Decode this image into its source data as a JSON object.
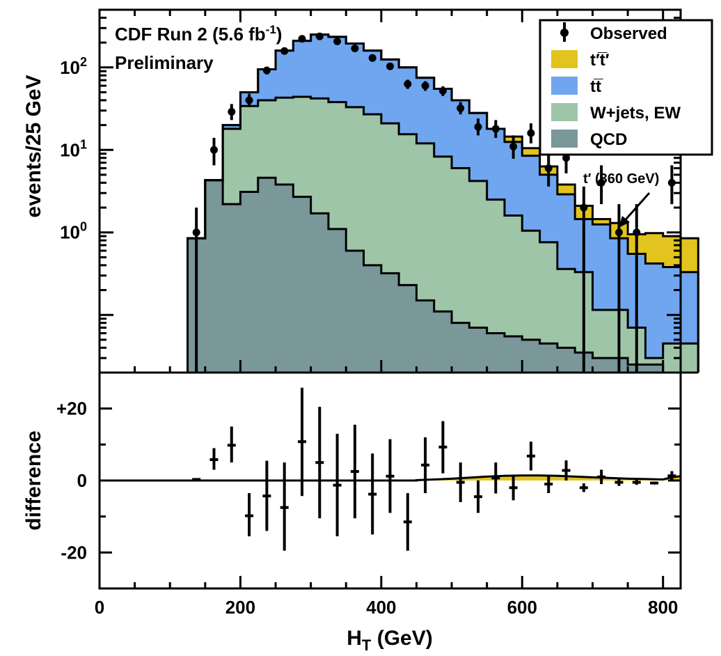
{
  "header": {
    "experiment": "CDF Run 2 (5.6 fb",
    "lumi_sup": "-1",
    "lumi_close": ")",
    "status": "Preliminary"
  },
  "annotation": {
    "label": "t′  (360 GeV)"
  },
  "colors": {
    "tprime": "#e3c31d",
    "ttbar": "#6fa6ef",
    "wjets": "#9ec5a7",
    "qcd": "#7a979a",
    "outline": "#000000"
  },
  "chart_data": [
    {
      "type": "histogram",
      "xlabel": "H",
      "xlabel_sub": "T",
      "xlabel_unit": "  (GeV)",
      "ylabel": "events/25 GeV",
      "yscale": "log",
      "xlim": [
        0,
        825
      ],
      "ylim": [
        0.02,
        500
      ],
      "x_ticks": [
        "0",
        "200",
        "400",
        "600",
        "800"
      ],
      "y_ticks": [
        {
          "value": 1,
          "base": "10",
          "exp": "0"
        },
        {
          "value": 10,
          "base": "10",
          "exp": "1"
        },
        {
          "value": 100,
          "base": "10",
          "exp": "2"
        }
      ],
      "legend_position": "top-right",
      "legend": [
        {
          "key": "observed",
          "label": "Observed"
        },
        {
          "key": "tprime",
          "label": "t′t̅′"
        },
        {
          "key": "ttbar",
          "label": "tt̅"
        },
        {
          "key": "wjets",
          "label": "W+jets, EW"
        },
        {
          "key": "qcd",
          "label": "QCD"
        }
      ],
      "bin_width": 25,
      "bin_edges_start": 125,
      "bin_edges_end": 825,
      "stack_total_with_tprime": [
        0.85,
        4.3,
        20,
        50,
        95,
        160,
        210,
        250,
        235,
        195,
        160,
        125,
        100,
        75,
        55,
        40,
        28,
        18,
        14.5,
        10.5,
        6.3,
        3.8,
        2.1,
        1.45,
        1.3,
        0.95,
        0.98,
        0.9,
        0.85
      ],
      "stack_total_no_tprime": [
        0.85,
        4.3,
        20,
        50,
        95,
        160,
        210,
        250,
        235,
        195,
        160,
        125,
        100,
        75,
        55,
        40,
        28,
        18,
        12.5,
        8.5,
        5.0,
        2.9,
        1.45,
        1.25,
        0.85,
        0.55,
        0.42,
        0.38,
        0.33
      ],
      "wjets_ew_plus_qcd": [
        0.85,
        4.3,
        18,
        34,
        40,
        43,
        44,
        42,
        38,
        33,
        27,
        21,
        15.5,
        12,
        8.3,
        6.0,
        4.2,
        2.5,
        1.6,
        1.05,
        0.76,
        0.36,
        0.33,
        0.115,
        0.115,
        0.07,
        0.03,
        0.045,
        0.045
      ],
      "qcd": [
        0.85,
        4.3,
        2.2,
        3.1,
        4.6,
        3.8,
        2.7,
        1.7,
        1.1,
        0.6,
        0.4,
        0.32,
        0.23,
        0.15,
        0.11,
        0.08,
        0.07,
        0.06,
        0.055,
        0.05,
        0.045,
        0.04,
        0.035,
        0.03,
        0.03,
        0.025,
        0.025,
        0.02,
        0.02
      ],
      "observed": [
        {
          "x": 137.5,
          "y": 1.0,
          "ylo": 0.02,
          "yhi": 2.0
        },
        {
          "x": 162.5,
          "y": 10,
          "ylo": 6.5,
          "yhi": 14
        },
        {
          "x": 187.5,
          "y": 29,
          "ylo": 23,
          "yhi": 36
        },
        {
          "x": 212.5,
          "y": 40,
          "ylo": 33,
          "yhi": 48
        },
        {
          "x": 237.5,
          "y": 92,
          "ylo": 82,
          "yhi": 102
        },
        {
          "x": 262.5,
          "y": 158,
          "ylo": 145,
          "yhi": 171
        },
        {
          "x": 287.5,
          "y": 222,
          "ylo": 207,
          "yhi": 237
        },
        {
          "x": 312.5,
          "y": 238,
          "ylo": 223,
          "yhi": 254
        },
        {
          "x": 337.5,
          "y": 207,
          "ylo": 193,
          "yhi": 221
        },
        {
          "x": 362.5,
          "y": 170,
          "ylo": 157,
          "yhi": 183
        },
        {
          "x": 387.5,
          "y": 130,
          "ylo": 119,
          "yhi": 141
        },
        {
          "x": 412.5,
          "y": 103,
          "ylo": 93,
          "yhi": 113
        },
        {
          "x": 437.5,
          "y": 63,
          "ylo": 55,
          "yhi": 71
        },
        {
          "x": 462.5,
          "y": 60,
          "ylo": 52,
          "yhi": 68
        },
        {
          "x": 487.5,
          "y": 52,
          "ylo": 45,
          "yhi": 59
        },
        {
          "x": 512.5,
          "y": 32,
          "ylo": 27,
          "yhi": 38
        },
        {
          "x": 537.5,
          "y": 19,
          "ylo": 15,
          "yhi": 24
        },
        {
          "x": 562.5,
          "y": 18,
          "ylo": 14,
          "yhi": 23
        },
        {
          "x": 587.5,
          "y": 11,
          "ylo": 7.8,
          "yhi": 15
        },
        {
          "x": 612.5,
          "y": 16,
          "ylo": 12,
          "yhi": 21
        },
        {
          "x": 637.5,
          "y": 6,
          "ylo": 3.6,
          "yhi": 9
        },
        {
          "x": 662.5,
          "y": 8,
          "ylo": 5.2,
          "yhi": 11.5
        },
        {
          "x": 687.5,
          "y": 2,
          "ylo": 0.02,
          "yhi": 3.6
        },
        {
          "x": 712.5,
          "y": 4,
          "ylo": 2.2,
          "yhi": 6.5
        },
        {
          "x": 737.5,
          "y": 1,
          "ylo": 0.02,
          "yhi": 2.2
        },
        {
          "x": 762.5,
          "y": 1,
          "ylo": 0.02,
          "yhi": 2.2
        },
        {
          "x": 812.5,
          "y": 4,
          "ylo": 2.2,
          "yhi": 6.5
        }
      ]
    },
    {
      "type": "scatter",
      "xlabel": "",
      "ylabel": "difference",
      "xlim": [
        0,
        825
      ],
      "ylim": [
        -30,
        30
      ],
      "y_ticks": [
        {
          "value": 20,
          "label": "+20"
        },
        {
          "value": 0,
          "label": "0"
        },
        {
          "value": -20,
          "label": "-20"
        }
      ],
      "tprime_band_x": [
        450,
        475,
        500,
        525,
        550,
        575,
        600,
        625,
        650,
        675,
        700,
        725,
        750,
        775,
        800,
        812.5,
        825
      ],
      "tprime_band_y": [
        0.1,
        0.3,
        0.5,
        0.8,
        1.1,
        1.3,
        1.4,
        1.4,
        1.3,
        1.1,
        0.9,
        0.7,
        0.5,
        0.4,
        0.3,
        0.9,
        1.2
      ],
      "points": [
        {
          "x": 137.5,
          "y": 0.3,
          "ylo": 0.0,
          "yhi": 0.6
        },
        {
          "x": 162.5,
          "y": 5.8,
          "ylo": 3.0,
          "yhi": 9.0
        },
        {
          "x": 187.5,
          "y": 9.8,
          "ylo": 5.0,
          "yhi": 15.0
        },
        {
          "x": 212.5,
          "y": -9.8,
          "ylo": -15.5,
          "yhi": -3.5
        },
        {
          "x": 237.5,
          "y": -4.3,
          "ylo": -14.0,
          "yhi": 5.5
        },
        {
          "x": 262.5,
          "y": -7.5,
          "ylo": -19.5,
          "yhi": 5.0
        },
        {
          "x": 287.5,
          "y": 10.8,
          "ylo": -4.3,
          "yhi": 25.8
        },
        {
          "x": 312.5,
          "y": 5.0,
          "ylo": -10.5,
          "yhi": 20.5
        },
        {
          "x": 337.5,
          "y": -1.3,
          "ylo": -15.5,
          "yhi": 13.0
        },
        {
          "x": 362.5,
          "y": 2.5,
          "ylo": -10.5,
          "yhi": 15.5
        },
        {
          "x": 387.5,
          "y": -3.8,
          "ylo": -15.0,
          "yhi": 7.5
        },
        {
          "x": 412.5,
          "y": 1.2,
          "ylo": -9.0,
          "yhi": 11.5
        },
        {
          "x": 437.5,
          "y": -11.5,
          "ylo": -19.5,
          "yhi": -3.5
        },
        {
          "x": 462.5,
          "y": 4.3,
          "ylo": -3.5,
          "yhi": 12.0
        },
        {
          "x": 487.5,
          "y": 9.3,
          "ylo": 2.0,
          "yhi": 16.5
        },
        {
          "x": 512.5,
          "y": -0.5,
          "ylo": -6.0,
          "yhi": 5.0
        },
        {
          "x": 537.5,
          "y": -4.5,
          "ylo": -9.0,
          "yhi": 0.0
        },
        {
          "x": 562.5,
          "y": 0.7,
          "ylo": -3.6,
          "yhi": 5.0
        },
        {
          "x": 587.5,
          "y": -2.0,
          "ylo": -5.5,
          "yhi": 1.5
        },
        {
          "x": 612.5,
          "y": 6.8,
          "ylo": 2.8,
          "yhi": 10.8
        },
        {
          "x": 637.5,
          "y": -1.0,
          "ylo": -3.5,
          "yhi": 1.5
        },
        {
          "x": 662.5,
          "y": 2.8,
          "ylo": 0.0,
          "yhi": 5.6
        },
        {
          "x": 687.5,
          "y": -2.0,
          "ylo": -3.2,
          "yhi": -0.8
        },
        {
          "x": 712.5,
          "y": 1.0,
          "ylo": -1.0,
          "yhi": 3.0
        },
        {
          "x": 737.5,
          "y": -0.5,
          "ylo": -1.5,
          "yhi": 0.5
        },
        {
          "x": 762.5,
          "y": -0.5,
          "ylo": -1.2,
          "yhi": 0.2
        },
        {
          "x": 787.5,
          "y": -0.7,
          "ylo": -1.1,
          "yhi": -0.3
        },
        {
          "x": 812.5,
          "y": 1.3,
          "ylo": 0.0,
          "yhi": 2.6
        }
      ]
    }
  ]
}
